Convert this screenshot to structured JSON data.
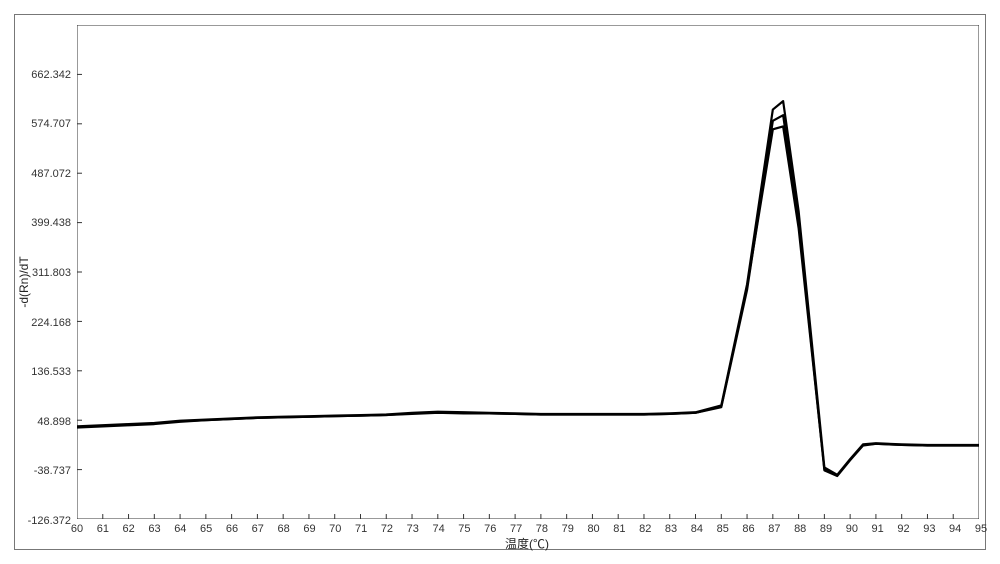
{
  "chart": {
    "type": "line",
    "xlabel": "温度(℃)",
    "ylabel": "-d(Rn)/dT",
    "xlim": [
      60,
      95
    ],
    "ylim": [
      -126.372,
      750
    ],
    "yticks": [
      -126.372,
      -38.737,
      48.898,
      136.533,
      224.168,
      311.803,
      399.438,
      487.072,
      574.707,
      662.342
    ],
    "xticks": [
      60,
      61,
      62,
      63,
      64,
      65,
      66,
      67,
      68,
      69,
      70,
      71,
      72,
      73,
      74,
      75,
      76,
      77,
      78,
      79,
      80,
      81,
      82,
      83,
      84,
      85,
      86,
      87,
      88,
      89,
      90,
      91,
      92,
      93,
      94,
      95
    ],
    "background_color": "#ffffff",
    "border_color": "#777777",
    "axis_color": "#333333",
    "tick_color": "#333333",
    "label_fontsize": 12,
    "tick_fontsize": 11,
    "line_color": "#000000",
    "line_width": 2.2,
    "series": [
      {
        "name": "curve1",
        "x": [
          60,
          61,
          62,
          63,
          64,
          65,
          66,
          67,
          68,
          69,
          70,
          71,
          72,
          73,
          74,
          75,
          76,
          77,
          78,
          79,
          80,
          81,
          82,
          83,
          84,
          85,
          86,
          87,
          87.4,
          88,
          89,
          89.5,
          90,
          90.5,
          91,
          92,
          93,
          94,
          95
        ],
        "y": [
          38,
          40,
          42,
          44,
          48,
          50,
          52,
          54,
          55,
          56,
          57,
          58,
          59,
          62,
          64,
          63,
          62,
          61,
          60,
          60,
          60,
          60,
          60,
          61,
          63,
          75,
          290,
          600,
          615,
          420,
          -35,
          -48,
          -20,
          6,
          8,
          6,
          5,
          5,
          5
        ]
      },
      {
        "name": "curve2",
        "x": [
          60,
          61,
          62,
          63,
          64,
          65,
          66,
          67,
          68,
          69,
          70,
          71,
          72,
          73,
          74,
          75,
          76,
          77,
          78,
          79,
          80,
          81,
          82,
          83,
          84,
          85,
          86,
          87,
          87.4,
          88,
          89,
          89.5,
          90,
          90.5,
          91,
          92,
          93,
          94,
          95
        ],
        "y": [
          36,
          38,
          40,
          42,
          46,
          49,
          51,
          53,
          54,
          55,
          56,
          57,
          58,
          60,
          62,
          61,
          61,
          60,
          59,
          59,
          59,
          59,
          59,
          60,
          62,
          72,
          280,
          580,
          590,
          400,
          -40,
          -50,
          -22,
          4,
          7,
          5,
          4,
          4,
          4
        ]
      },
      {
        "name": "curve3",
        "x": [
          60,
          61,
          62,
          63,
          64,
          65,
          66,
          67,
          68,
          69,
          70,
          71,
          72,
          73,
          74,
          75,
          76,
          77,
          78,
          79,
          80,
          81,
          82,
          83,
          84,
          85,
          86,
          87,
          87.4,
          88,
          89,
          89.5,
          90,
          90.5,
          91,
          92,
          93,
          94,
          95
        ],
        "y": [
          37,
          39,
          41,
          43,
          47,
          49,
          51,
          53,
          54,
          55,
          56,
          57,
          58,
          61,
          63,
          62,
          61,
          60,
          59,
          59,
          59,
          59,
          59,
          60,
          62,
          73,
          285,
          565,
          570,
          390,
          -38,
          -49,
          -21,
          5,
          7,
          5,
          4,
          4,
          4
        ]
      }
    ]
  }
}
